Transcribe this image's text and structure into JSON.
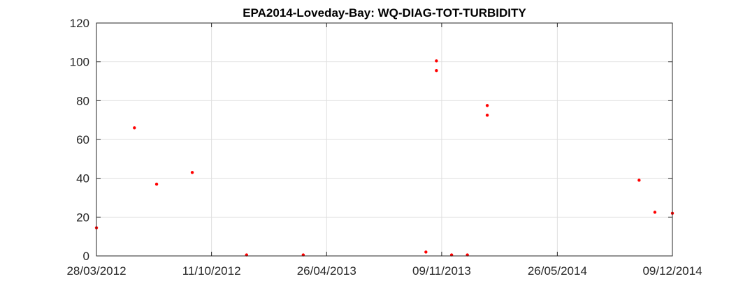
{
  "chart_data": {
    "type": "scatter",
    "title": "EPA2014-Loveday-Bay: WQ-DIAG-TOT-TURBIDITY",
    "xlabel": "",
    "ylabel": "",
    "x_type": "date",
    "xlim": [
      "2012-03-28",
      "2014-12-09"
    ],
    "ylim": [
      0,
      120
    ],
    "x_ticks": [
      "2012-03-28",
      "2012-10-11",
      "2013-04-26",
      "2013-11-09",
      "2014-05-26",
      "2014-12-09"
    ],
    "x_tick_labels": [
      "28/03/2012",
      "11/10/2012",
      "26/04/2013",
      "09/11/2013",
      "26/05/2014",
      "09/12/2014"
    ],
    "y_ticks": [
      0,
      20,
      40,
      60,
      80,
      100,
      120
    ],
    "y_tick_labels": [
      "0",
      "20",
      "40",
      "60",
      "80",
      "100",
      "120"
    ],
    "grid": true,
    "marker_color": "#ff0000",
    "series": [
      {
        "points": [
          {
            "x": "2012-03-28",
            "y": 14.5
          },
          {
            "x": "2012-06-01",
            "y": 66
          },
          {
            "x": "2012-07-09",
            "y": 37
          },
          {
            "x": "2012-09-08",
            "y": 43
          },
          {
            "x": "2012-12-10",
            "y": 0.5
          },
          {
            "x": "2013-03-17",
            "y": 0.5
          },
          {
            "x": "2013-10-13",
            "y": 2
          },
          {
            "x": "2013-10-31",
            "y": 100.5
          },
          {
            "x": "2013-10-31",
            "y": 95.5
          },
          {
            "x": "2013-11-26",
            "y": 0.5
          },
          {
            "x": "2013-12-23",
            "y": 0.5
          },
          {
            "x": "2014-01-26",
            "y": 77.5
          },
          {
            "x": "2014-01-26",
            "y": 72.5
          },
          {
            "x": "2014-10-13",
            "y": 39
          },
          {
            "x": "2014-11-09",
            "y": 22.5
          },
          {
            "x": "2014-12-09",
            "y": 22
          }
        ]
      }
    ]
  }
}
